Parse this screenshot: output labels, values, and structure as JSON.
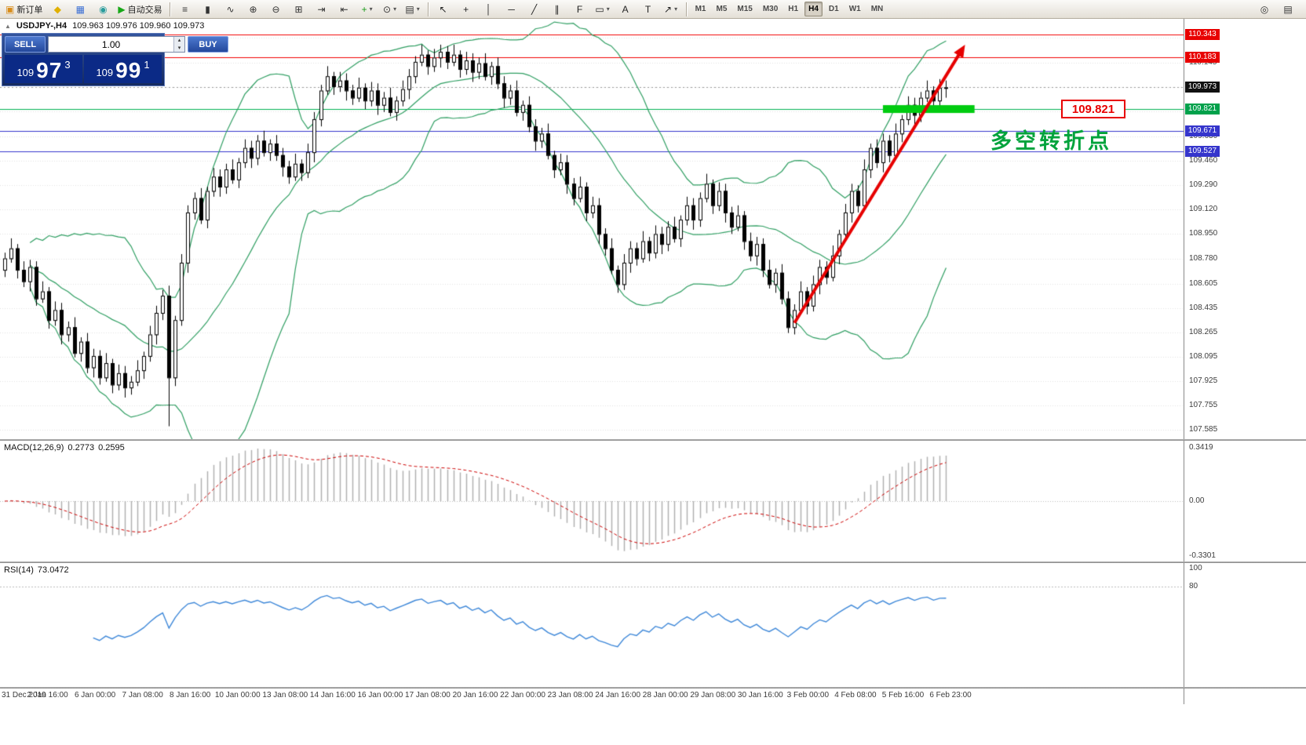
{
  "toolbar": {
    "file_group": [
      {
        "name": "new-order-button",
        "glyph": "▣",
        "glyph_color": "#d88c1a",
        "label": "新订单"
      },
      {
        "name": "market-watch-icon",
        "glyph": "◆",
        "glyph_color": "#e0b000"
      },
      {
        "name": "data-window-icon",
        "glyph": "▦",
        "glyph_color": "#3b6fd4"
      },
      {
        "name": "navigator-icon",
        "glyph": "◉",
        "glyph_color": "#2a9c9c"
      },
      {
        "name": "auto-trading-button",
        "glyph": "▶",
        "glyph_color": "#18a818",
        "label": "自动交易"
      }
    ],
    "chart_group": [
      {
        "name": "bar-chart-icon",
        "glyph": "≡",
        "glyph_color": "#333333"
      },
      {
        "name": "candlestick-chart-icon",
        "glyph": "▮",
        "glyph_color": "#333333"
      },
      {
        "name": "line-chart-icon",
        "glyph": "∿",
        "glyph_color": "#333333"
      },
      {
        "name": "zoom-in-icon",
        "glyph": "⊕",
        "glyph_color": "#333333"
      },
      {
        "name": "zoom-out-icon",
        "glyph": "⊖",
        "glyph_color": "#333333"
      },
      {
        "name": "tile-windows-icon",
        "glyph": "⊞",
        "glyph_color": "#333333"
      },
      {
        "name": "auto-scroll-icon",
        "glyph": "⇥",
        "glyph_color": "#333333"
      },
      {
        "name": "chart-shift-icon",
        "glyph": "⇤",
        "glyph_color": "#333333"
      },
      {
        "name": "indicators-icon",
        "glyph": "+",
        "glyph_color": "#1a9c1a",
        "dropdown": true
      },
      {
        "name": "periods-icon",
        "glyph": "⊙",
        "glyph_color": "#333333",
        "dropdown": true
      },
      {
        "name": "templates-icon",
        "glyph": "▤",
        "glyph_color": "#333333",
        "dropdown": true
      }
    ],
    "tools_group": [
      {
        "name": "cursor-tool-icon",
        "glyph": "↖",
        "glyph_color": "#222222"
      },
      {
        "name": "crosshair-tool-icon",
        "glyph": "+",
        "glyph_color": "#222222"
      },
      {
        "name": "vertical-line-tool-icon",
        "glyph": "│",
        "glyph_color": "#222222"
      },
      {
        "name": "horizontal-line-tool-icon",
        "glyph": "─",
        "glyph_color": "#222222"
      },
      {
        "name": "trendline-tool-icon",
        "glyph": "╱",
        "glyph_color": "#222222"
      },
      {
        "name": "channel-tool-icon",
        "glyph": "∥",
        "glyph_color": "#222222"
      },
      {
        "name": "fibonacci-tool-icon",
        "glyph": "F",
        "glyph_color": "#222222"
      },
      {
        "name": "shapes-tool-icon",
        "glyph": "▭",
        "glyph_color": "#222222",
        "dropdown": true
      },
      {
        "name": "text-tool-icon",
        "glyph": "A",
        "glyph_color": "#222222"
      },
      {
        "name": "label-tool-icon",
        "glyph": "T",
        "glyph_color": "#222222"
      },
      {
        "name": "arrows-tool-icon",
        "glyph": "↗",
        "glyph_color": "#222222",
        "dropdown": true
      }
    ],
    "timeframes": [
      "M1",
      "M5",
      "M15",
      "M30",
      "H1",
      "H4",
      "D1",
      "W1",
      "MN"
    ],
    "active_timeframe": "H4",
    "right_group": [
      {
        "name": "search-icon",
        "glyph": "◎",
        "glyph_color": "#333333"
      },
      {
        "name": "print-icon",
        "glyph": "▤",
        "glyph_color": "#333333"
      }
    ]
  },
  "quote": {
    "collapse_icon": "▲",
    "symbol_period": "USDJPY-,H4",
    "ohlc": "109.963 109.976 109.960 109.973"
  },
  "trade_panel": {
    "sell_label": "SELL",
    "buy_label": "BUY",
    "volume": "1.00",
    "sell_price": {
      "prefix": "109",
      "big": "97",
      "sup": "3"
    },
    "buy_price": {
      "prefix": "109",
      "big": "99",
      "sup": "1"
    }
  },
  "macd": {
    "title": "MACD(12,26,9)",
    "value_main": "0.2773",
    "value_signal": "0.2595",
    "axis_labels": [
      "0.3419",
      "0.00",
      "-0.3301"
    ],
    "params": {
      "fast": 12,
      "slow": 26,
      "signal": 9
    }
  },
  "rsi": {
    "title": "RSI(14)",
    "value": "73.0472",
    "axis_labels": [
      "100",
      "80"
    ],
    "level": 80,
    "period": 14
  },
  "annotations": {
    "price_flag": "109.821",
    "note_text": "多空转折点"
  },
  "chart_data": {
    "type": "candlestick",
    "symbol": "USDJPY-",
    "timeframe": "H4",
    "first_open": 108.7,
    "closes": [
      108.78,
      108.85,
      108.7,
      108.62,
      108.72,
      108.5,
      108.55,
      108.35,
      108.42,
      108.25,
      108.3,
      108.12,
      108.2,
      108.02,
      108.1,
      107.95,
      108.05,
      107.9,
      107.98,
      107.88,
      107.92,
      108.0,
      108.1,
      108.25,
      108.4,
      108.52,
      107.95,
      108.35,
      108.75,
      109.1,
      109.2,
      109.05,
      109.25,
      109.35,
      109.28,
      109.4,
      109.33,
      109.45,
      109.55,
      109.48,
      109.6,
      109.52,
      109.58,
      109.5,
      109.42,
      109.35,
      109.44,
      109.38,
      109.52,
      109.75,
      109.95,
      110.05,
      109.98,
      110.02,
      109.95,
      109.9,
      109.97,
      109.88,
      109.95,
      109.85,
      109.9,
      109.8,
      109.88,
      109.96,
      110.05,
      110.15,
      110.2,
      110.12,
      110.18,
      110.22,
      110.15,
      110.2,
      110.1,
      110.16,
      110.08,
      110.14,
      110.05,
      110.12,
      110.0,
      109.9,
      109.95,
      109.8,
      109.85,
      109.7,
      109.6,
      109.65,
      109.5,
      109.4,
      109.45,
      109.3,
      109.2,
      109.28,
      109.1,
      109.15,
      108.95,
      108.85,
      108.7,
      108.6,
      108.75,
      108.85,
      108.78,
      108.9,
      108.82,
      108.95,
      108.88,
      109.0,
      108.92,
      109.05,
      109.15,
      109.05,
      109.2,
      109.3,
      109.15,
      109.25,
      109.1,
      109.0,
      109.08,
      108.9,
      108.8,
      108.88,
      108.7,
      108.6,
      108.68,
      108.5,
      108.3,
      108.42,
      108.55,
      108.45,
      108.6,
      108.72,
      108.65,
      108.8,
      108.95,
      109.1,
      109.25,
      109.15,
      109.4,
      109.55,
      109.45,
      109.6,
      109.5,
      109.65,
      109.75,
      109.85,
      109.78,
      109.9,
      109.95,
      109.88,
      109.97,
      109.973
    ],
    "wick_high_cycle": [
      0.04,
      0.07,
      0.03,
      0.06,
      0.05
    ],
    "wick_low_cycle": [
      0.05,
      0.03,
      0.06,
      0.04,
      0.07
    ],
    "special_lows": {
      "26": 107.61,
      "124": 108.26
    },
    "special_highs": {
      "69": 110.27,
      "149": 110.02
    },
    "bollinger": {
      "period": 20,
      "deviation": 2
    },
    "hlines": [
      {
        "price": 110.343,
        "color": "#f20000"
      },
      {
        "price": 110.183,
        "color": "#f20000"
      },
      {
        "price": 109.821,
        "color": "#00b050"
      },
      {
        "price": 109.671,
        "color": "#3535cc"
      },
      {
        "price": 109.527,
        "color": "#3535cc"
      },
      {
        "price": 109.973,
        "color": "#999999",
        "dotted": true
      }
    ],
    "badges": [
      {
        "text": "110.343",
        "bg": "#e80000"
      },
      {
        "text": "110.183",
        "bg": "#e80000"
      },
      {
        "text": "109.973",
        "bg": "#111111"
      },
      {
        "text": "109.821",
        "bg": "#00a14b"
      },
      {
        "text": "109.671",
        "bg": "#3535cc"
      },
      {
        "text": "109.527",
        "bg": "#3535cc"
      }
    ],
    "price_axis": [
      "110.318",
      "110.145",
      "109.975",
      "109.805",
      "109.630",
      "109.460",
      "109.290",
      "109.120",
      "108.950",
      "108.780",
      "108.605",
      "108.435",
      "108.265",
      "108.095",
      "107.925",
      "107.755",
      "107.585"
    ],
    "time_axis": [
      "31 Dec 2019",
      "2 Jan 16:00",
      "6 Jan 00:00",
      "7 Jan 08:00",
      "8 Jan 16:00",
      "10 Jan 00:00",
      "13 Jan 08:00",
      "14 Jan 16:00",
      "16 Jan 00:00",
      "17 Jan 08:00",
      "20 Jan 16:00",
      "22 Jan 00:00",
      "23 Jan 08:00",
      "24 Jan 16:00",
      "28 Jan 00:00",
      "29 Jan 08:00",
      "30 Jan 16:00",
      "3 Feb 00:00",
      "4 Feb 08:00",
      "5 Feb 16:00",
      "6 Feb 23:00"
    ],
    "arrow": {
      "start_index": 125,
      "start_price": 108.33,
      "end_index": 152,
      "end_price": 110.27,
      "color": "#e60000",
      "width": 4
    },
    "green_bar": {
      "start_index": 139,
      "end_index": 153.5,
      "price": 109.821,
      "thickness": 10,
      "color": "#00cc10"
    },
    "colors": {
      "bands": "#2f9e62",
      "grid": "#e2e2e2",
      "bull": "#ffffff",
      "bear": "#000000",
      "outline": "#000000",
      "macd_hist": "#b0b0b0",
      "macd_signal": "#cc0000",
      "rsi_line": "#3d87d8"
    }
  }
}
